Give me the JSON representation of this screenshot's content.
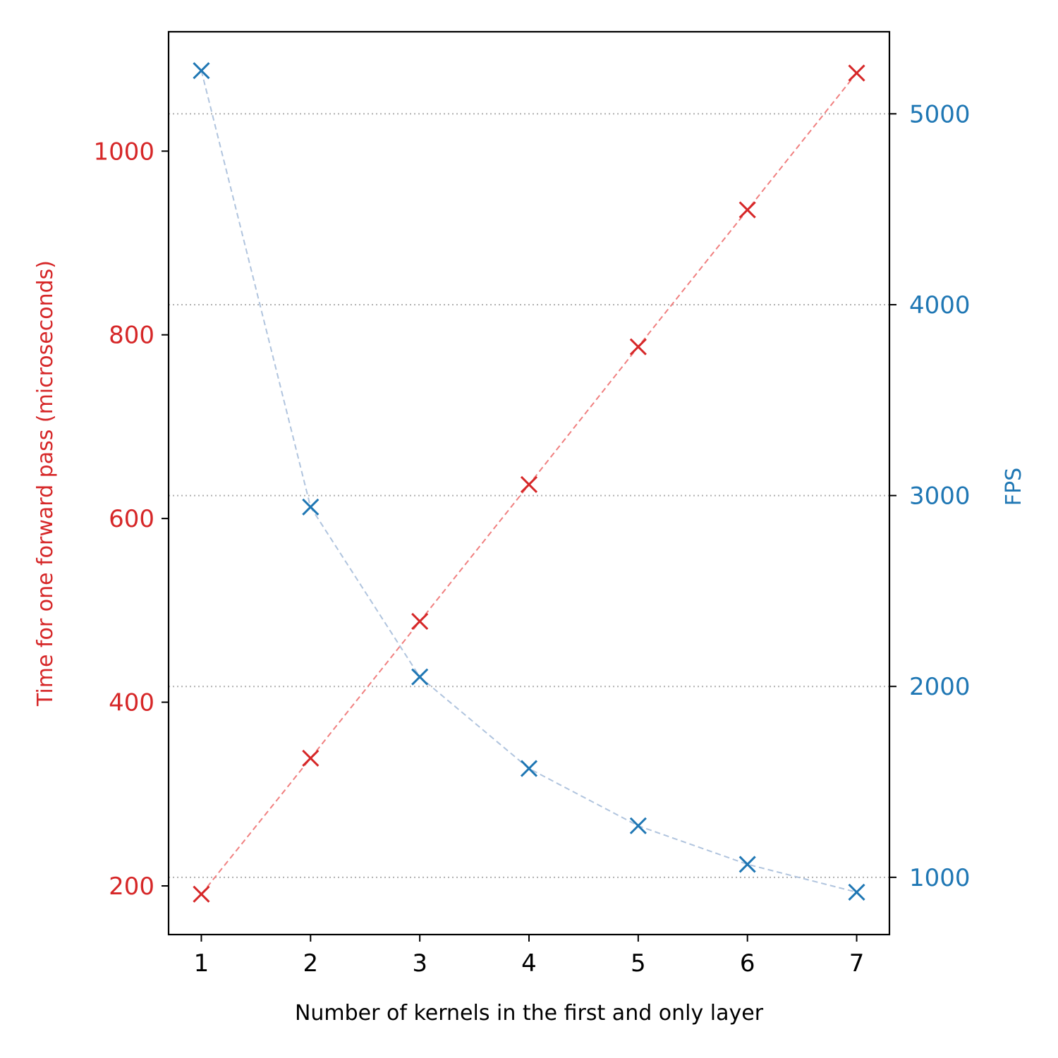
{
  "chart_data": {
    "type": "line",
    "xlabel": "Number of kernels in the first and only layer",
    "y_left_label": "Time for one forward pass (microseconds)",
    "y_right_label": "FPS",
    "x": [
      1,
      2,
      3,
      4,
      5,
      6,
      7
    ],
    "x_ticks": [
      "1",
      "2",
      "3",
      "4",
      "5",
      "6",
      "7"
    ],
    "xlim": [
      0.7,
      7.3
    ],
    "y_left_lim": [
      147,
      1130
    ],
    "y_left_ticks": [
      "200",
      "400",
      "600",
      "800",
      "1000"
    ],
    "y_right_lim": [
      700,
      5430
    ],
    "y_right_ticks": [
      "1000",
      "2000",
      "3000",
      "4000",
      "5000"
    ],
    "grid": "horizontal dotted, at right-axis ticks",
    "series": [
      {
        "axis": "left",
        "color": "#d62728",
        "line_color": "#f08080",
        "marker": "x",
        "line_style": "dashed",
        "values": [
          191,
          339,
          488,
          637,
          787,
          936,
          1085
        ]
      },
      {
        "axis": "right",
        "color": "#1f77b4",
        "line_color": "#b0c4de",
        "marker": "x",
        "line_style": "dashed",
        "values": [
          5226,
          2940,
          2050,
          1570,
          1270,
          1068,
          922
        ]
      }
    ]
  }
}
